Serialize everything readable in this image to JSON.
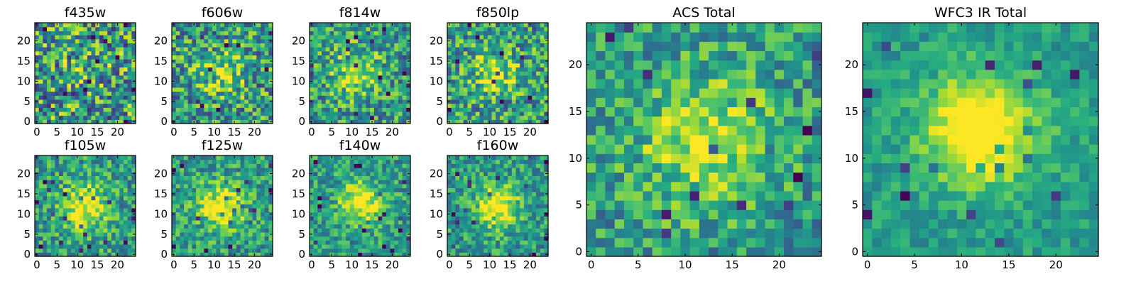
{
  "chart_data": [
    {
      "type": "heatmap",
      "title": "f435w",
      "data_extent": 25,
      "xlim": [
        -0.5,
        24.5
      ],
      "ylim": [
        -0.5,
        24.5
      ],
      "xticks": [
        0,
        5,
        10,
        15,
        20
      ],
      "yticks": [
        0,
        5,
        10,
        15,
        20
      ],
      "colormap": "viridis",
      "source_center": [
        12,
        12
      ],
      "source_strength": 0.12,
      "source_width": 4,
      "noise_level": 0.42,
      "seed": 11
    },
    {
      "type": "heatmap",
      "title": "f606w",
      "data_extent": 25,
      "xlim": [
        -0.5,
        24.5
      ],
      "ylim": [
        -0.5,
        24.5
      ],
      "xticks": [
        0,
        5,
        10,
        15,
        20
      ],
      "yticks": [
        0,
        5,
        10,
        15,
        20
      ],
      "colormap": "viridis",
      "source_center": [
        12,
        12
      ],
      "source_strength": 0.28,
      "source_width": 4,
      "noise_level": 0.36,
      "seed": 23
    },
    {
      "type": "heatmap",
      "title": "f814w",
      "data_extent": 25,
      "xlim": [
        -0.5,
        24.5
      ],
      "ylim": [
        -0.5,
        24.5
      ],
      "xticks": [
        0,
        5,
        10,
        15,
        20
      ],
      "yticks": [
        0,
        5,
        10,
        15,
        20
      ],
      "colormap": "viridis",
      "source_center": [
        11,
        12
      ],
      "source_strength": 0.34,
      "source_width": 4,
      "noise_level": 0.32,
      "seed": 37
    },
    {
      "type": "heatmap",
      "title": "f850lp",
      "data_extent": 25,
      "xlim": [
        -0.5,
        24.5
      ],
      "ylim": [
        -0.5,
        24.5
      ],
      "xticks": [
        0,
        5,
        10,
        15,
        20
      ],
      "yticks": [
        0,
        5,
        10,
        15,
        20
      ],
      "colormap": "viridis",
      "source_center": [
        11,
        12
      ],
      "source_strength": 0.3,
      "source_width": 4,
      "noise_level": 0.34,
      "seed": 41
    },
    {
      "type": "heatmap",
      "title": "f105w",
      "data_extent": 25,
      "xlim": [
        -0.5,
        24.5
      ],
      "ylim": [
        -0.5,
        24.5
      ],
      "xticks": [
        0,
        5,
        10,
        15,
        20
      ],
      "yticks": [
        0,
        5,
        10,
        15,
        20
      ],
      "colormap": "viridis",
      "source_center": [
        12,
        12
      ],
      "source_strength": 0.5,
      "source_width": 4,
      "noise_level": 0.26,
      "seed": 53
    },
    {
      "type": "heatmap",
      "title": "f125w",
      "data_extent": 25,
      "xlim": [
        -0.5,
        24.5
      ],
      "ylim": [
        -0.5,
        24.5
      ],
      "xticks": [
        0,
        5,
        10,
        15,
        20
      ],
      "yticks": [
        0,
        5,
        10,
        15,
        20
      ],
      "colormap": "viridis",
      "source_center": [
        12,
        12
      ],
      "source_strength": 0.5,
      "source_width": 4,
      "noise_level": 0.25,
      "seed": 67
    },
    {
      "type": "heatmap",
      "title": "f140w",
      "data_extent": 25,
      "xlim": [
        -0.5,
        24.5
      ],
      "ylim": [
        -0.5,
        24.5
      ],
      "xticks": [
        0,
        5,
        10,
        15,
        20
      ],
      "yticks": [
        0,
        5,
        10,
        15,
        20
      ],
      "colormap": "viridis",
      "source_center": [
        12,
        13
      ],
      "source_strength": 0.55,
      "source_width": 3.5,
      "noise_level": 0.24,
      "seed": 71
    },
    {
      "type": "heatmap",
      "title": "f160w",
      "data_extent": 25,
      "xlim": [
        -0.5,
        24.5
      ],
      "ylim": [
        -0.5,
        24.5
      ],
      "xticks": [
        0,
        5,
        10,
        15,
        20
      ],
      "yticks": [
        0,
        5,
        10,
        15,
        20
      ],
      "colormap": "viridis",
      "source_center": [
        12,
        12
      ],
      "source_strength": 0.55,
      "source_width": 3.5,
      "noise_level": 0.24,
      "seed": 89
    },
    {
      "type": "heatmap",
      "title": "ACS Total",
      "data_extent": 25,
      "xlim": [
        -0.5,
        24.5
      ],
      "ylim": [
        -0.5,
        24.5
      ],
      "xticks": [
        0,
        5,
        10,
        15,
        20
      ],
      "yticks": [
        0,
        5,
        10,
        15,
        20
      ],
      "colormap": "viridis",
      "source_center": [
        12,
        12
      ],
      "source_strength": 0.42,
      "source_width": 4.5,
      "noise_level": 0.26,
      "seed": 97
    },
    {
      "type": "heatmap",
      "title": "WFC3 IR Total",
      "data_extent": 25,
      "xlim": [
        -0.5,
        24.5
      ],
      "ylim": [
        -0.5,
        24.5
      ],
      "xticks": [
        0,
        5,
        10,
        15,
        20
      ],
      "yticks": [
        0,
        5,
        10,
        15,
        20
      ],
      "colormap": "viridis",
      "source_center": [
        12,
        13
      ],
      "source_strength": 0.65,
      "source_width": 4,
      "noise_level": 0.14,
      "seed": 113
    }
  ]
}
